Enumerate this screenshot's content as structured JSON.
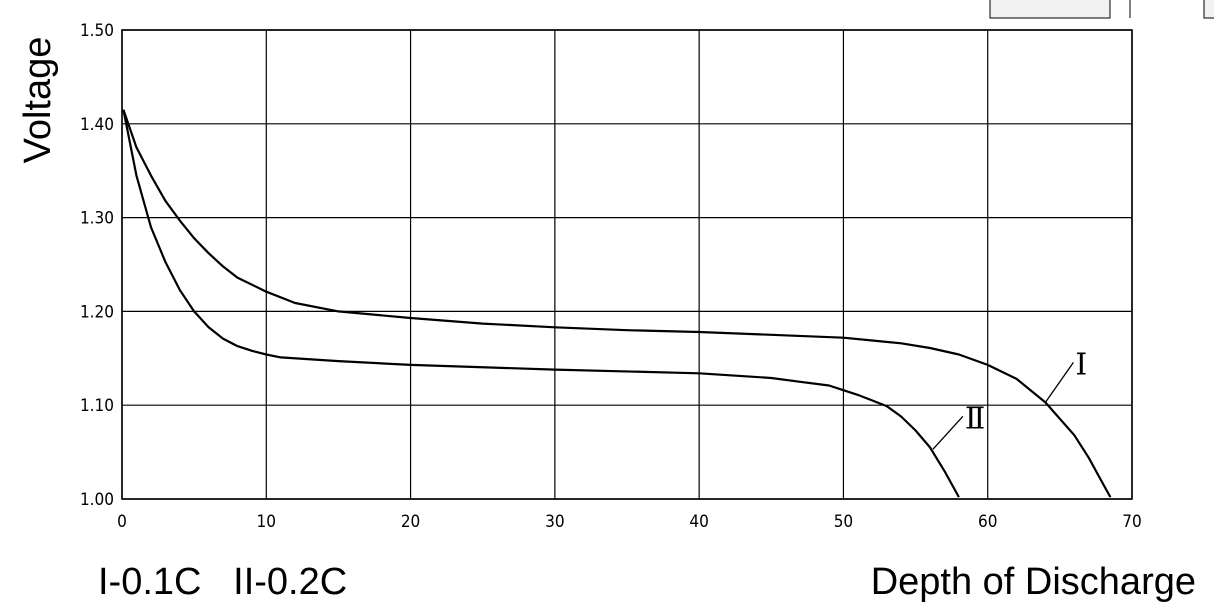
{
  "chart_data": {
    "type": "line",
    "title": "",
    "xlabel": "Depth of Discharge",
    "ylabel": "Voltage",
    "xlim": [
      0,
      70
    ],
    "ylim": [
      1.0,
      1.5
    ],
    "x_ticks": [
      "0",
      "10",
      "20",
      "30",
      "40",
      "50",
      "60",
      "70"
    ],
    "y_ticks": [
      "1.00",
      "1.10",
      "1.20",
      "1.30",
      "1.40",
      "1.50"
    ],
    "grid": true,
    "legend_text": "I-0.1C   II-0.2C",
    "series": [
      {
        "name": "I",
        "x": [
          0.1,
          1,
          2,
          3,
          4,
          5,
          6,
          7,
          8,
          10,
          12,
          15,
          20,
          25,
          30,
          35,
          40,
          45,
          50,
          52,
          54,
          56,
          58,
          60,
          62,
          64,
          66,
          67,
          68,
          68.5
        ],
        "y": [
          1.415,
          1.375,
          1.345,
          1.318,
          1.297,
          1.278,
          1.262,
          1.248,
          1.236,
          1.221,
          1.209,
          1.2,
          1.193,
          1.187,
          1.183,
          1.18,
          1.178,
          1.175,
          1.172,
          1.169,
          1.166,
          1.161,
          1.154,
          1.143,
          1.128,
          1.103,
          1.068,
          1.044,
          1.016,
          1.002
        ]
      },
      {
        "name": "II",
        "x": [
          0.1,
          1,
          2,
          3,
          4,
          5,
          6,
          7,
          8,
          9,
          10,
          11,
          15,
          20,
          30,
          40,
          45,
          47,
          49,
          50,
          51,
          52,
          53,
          54,
          55,
          56,
          57,
          58
        ],
        "y": [
          1.415,
          1.345,
          1.29,
          1.253,
          1.223,
          1.2,
          1.183,
          1.171,
          1.163,
          1.158,
          1.154,
          1.151,
          1.147,
          1.143,
          1.138,
          1.134,
          1.129,
          1.125,
          1.121,
          1.116,
          1.111,
          1.105,
          1.099,
          1.088,
          1.073,
          1.055,
          1.03,
          1.002
        ]
      }
    ],
    "curve_labels": [
      "Ⅰ",
      "Ⅱ"
    ]
  }
}
